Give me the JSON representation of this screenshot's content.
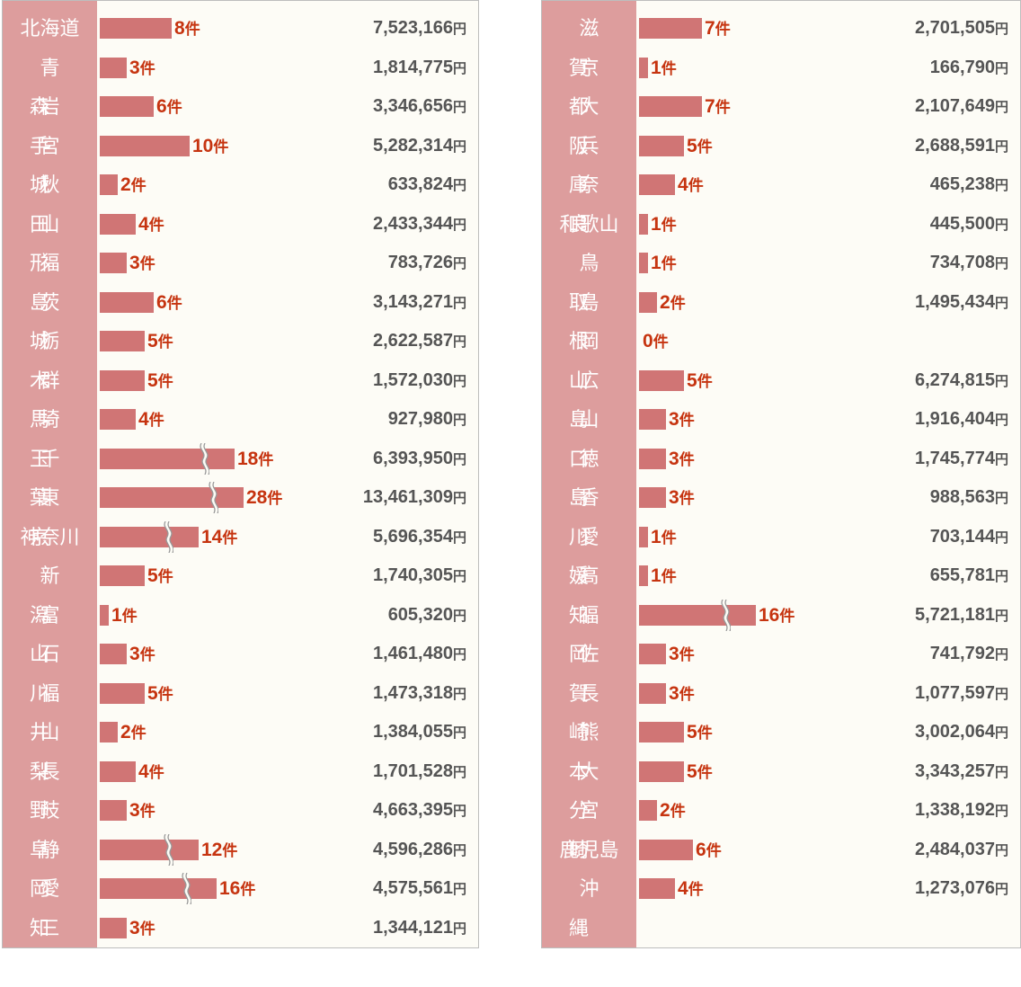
{
  "chart_data": {
    "type": "bar",
    "count_unit": "件",
    "amount_unit": "円",
    "columns": [
      [
        {
          "name": "北海道",
          "count": 8,
          "amount": "7,523,166"
        },
        {
          "name": "青森",
          "count": 3,
          "amount": "1,814,775"
        },
        {
          "name": "岩手",
          "count": 6,
          "amount": "3,346,656"
        },
        {
          "name": "宮城",
          "count": 10,
          "amount": "5,282,314"
        },
        {
          "name": "秋田",
          "count": 2,
          "amount": "633,824"
        },
        {
          "name": "山形",
          "count": 4,
          "amount": "2,433,344"
        },
        {
          "name": "福島",
          "count": 3,
          "amount": "783,726"
        },
        {
          "name": "茨城",
          "count": 6,
          "amount": "3,143,271"
        },
        {
          "name": "栃木",
          "count": 5,
          "amount": "2,622,587"
        },
        {
          "name": "群馬",
          "count": 5,
          "amount": "1,572,030"
        },
        {
          "name": "埼玉",
          "count": 4,
          "amount": "927,980"
        },
        {
          "name": "千葉",
          "count": 18,
          "amount": "6,393,950",
          "truncated": true
        },
        {
          "name": "東京",
          "count": 28,
          "amount": "13,461,309",
          "truncated": true
        },
        {
          "name": "神奈川",
          "count": 14,
          "amount": "5,696,354",
          "truncated": true
        },
        {
          "name": "新潟",
          "count": 5,
          "amount": "1,740,305"
        },
        {
          "name": "富山",
          "count": 1,
          "amount": "605,320"
        },
        {
          "name": "石川",
          "count": 3,
          "amount": "1,461,480"
        },
        {
          "name": "福井",
          "count": 5,
          "amount": "1,473,318"
        },
        {
          "name": "山梨",
          "count": 2,
          "amount": "1,384,055"
        },
        {
          "name": "長野",
          "count": 4,
          "amount": "1,701,528"
        },
        {
          "name": "岐阜",
          "count": 3,
          "amount": "4,663,395"
        },
        {
          "name": "静岡",
          "count": 12,
          "amount": "4,596,286",
          "truncated": true
        },
        {
          "name": "愛知",
          "count": 16,
          "amount": "4,575,561",
          "truncated": true
        },
        {
          "name": "三重",
          "count": 3,
          "amount": "1,344,121"
        }
      ],
      [
        {
          "name": "滋賀",
          "count": 7,
          "amount": "2,701,505"
        },
        {
          "name": "京都",
          "count": 1,
          "amount": "166,790"
        },
        {
          "name": "大阪",
          "count": 7,
          "amount": "2,107,649"
        },
        {
          "name": "兵庫",
          "count": 5,
          "amount": "2,688,591"
        },
        {
          "name": "奈良",
          "count": 4,
          "amount": "465,238"
        },
        {
          "name": "和歌山",
          "count": 1,
          "amount": "445,500"
        },
        {
          "name": "鳥取",
          "count": 1,
          "amount": "734,708"
        },
        {
          "name": "島根",
          "count": 2,
          "amount": "1,495,434"
        },
        {
          "name": "岡山",
          "count": 0,
          "amount": ""
        },
        {
          "name": "広島",
          "count": 5,
          "amount": "6,274,815"
        },
        {
          "name": "山口",
          "count": 3,
          "amount": "1,916,404"
        },
        {
          "name": "徳島",
          "count": 3,
          "amount": "1,745,774"
        },
        {
          "name": "香川",
          "count": 3,
          "amount": "988,563"
        },
        {
          "name": "愛媛",
          "count": 1,
          "amount": "703,144"
        },
        {
          "name": "高知",
          "count": 1,
          "amount": "655,781"
        },
        {
          "name": "福岡",
          "count": 16,
          "amount": "5,721,181",
          "truncated": true
        },
        {
          "name": "佐賀",
          "count": 3,
          "amount": "741,792"
        },
        {
          "name": "長崎",
          "count": 3,
          "amount": "1,077,597"
        },
        {
          "name": "熊本",
          "count": 5,
          "amount": "3,002,064"
        },
        {
          "name": "大分",
          "count": 5,
          "amount": "3,343,257"
        },
        {
          "name": "宮崎",
          "count": 2,
          "amount": "1,338,192"
        },
        {
          "name": "鹿児島",
          "count": 6,
          "amount": "2,484,037"
        },
        {
          "name": "沖縄",
          "count": 4,
          "amount": "1,273,076"
        }
      ]
    ],
    "colors": {
      "bar": "#d07575",
      "prefecture_band": "#dd9d9d",
      "count_text": "#c63410",
      "amount_text": "#555555",
      "background": "#fdfcf6"
    }
  }
}
